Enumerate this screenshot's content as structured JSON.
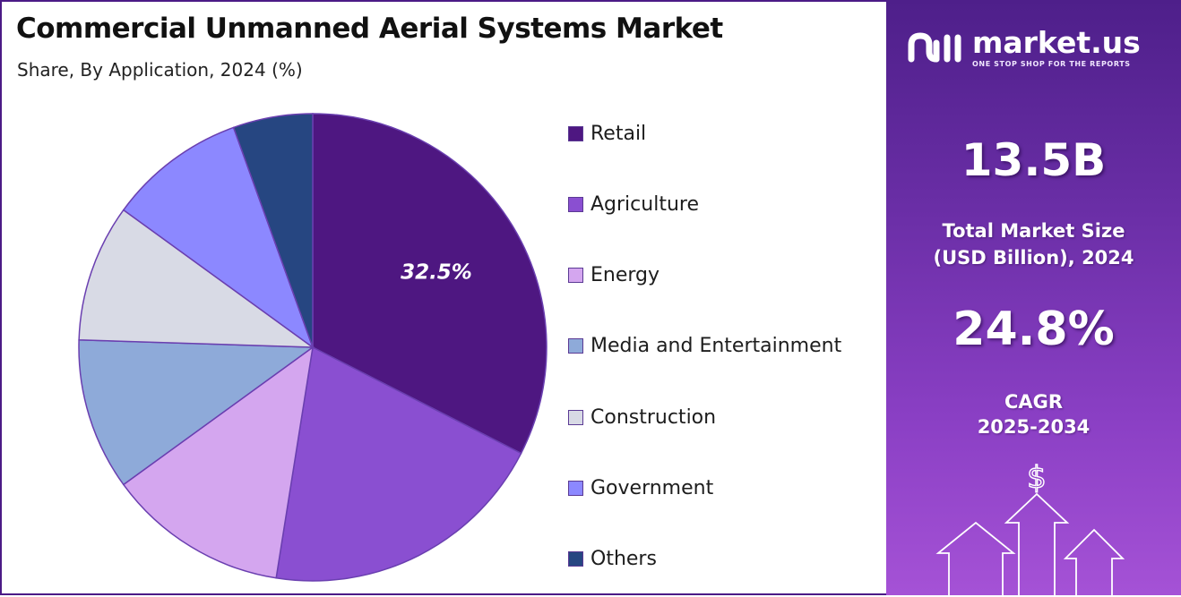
{
  "title": "Commercial Unmanned Aerial Systems Market",
  "subtitle": "Share, By Application, 2024 (%)",
  "chart_data": {
    "type": "pie",
    "title": "Commercial Unmanned Aerial Systems Market",
    "subtitle": "Share, By Application, 2024 (%)",
    "legend_position": "right",
    "slices": [
      {
        "label": "Retail",
        "value": 32.5,
        "color": "#4e1781",
        "data_label": "32.5%"
      },
      {
        "label": "Agriculture",
        "value": 20.0,
        "color": "#8a4fd1",
        "data_label": ""
      },
      {
        "label": "Energy",
        "value": 12.5,
        "color": "#d4a6ef",
        "data_label": ""
      },
      {
        "label": "Media and Entertainment",
        "value": 10.5,
        "color": "#8eaad9",
        "data_label": ""
      },
      {
        "label": "Construction",
        "value": 9.5,
        "color": "#d8dae5",
        "data_label": ""
      },
      {
        "label": "Government",
        "value": 9.5,
        "color": "#8c88ff",
        "data_label": ""
      },
      {
        "label": "Others",
        "value": 5.5,
        "color": "#264681",
        "data_label": ""
      }
    ]
  },
  "sidebar": {
    "brand_name": "market.us",
    "brand_tagline": "ONE STOP SHOP FOR THE REPORTS",
    "market_size_value": "13.5B",
    "market_size_label_line1": "Total Market Size",
    "market_size_label_line2": "(USD Billion), 2024",
    "cagr_value": "24.8%",
    "cagr_label_line1": "CAGR",
    "cagr_label_line2": "2025-2034",
    "currency_symbol": "$",
    "icons": [
      "market-us-logo-icon",
      "dollar-icon",
      "up-arrow-icon"
    ]
  },
  "colors": {
    "border": "#4b1a86",
    "panel_top": "#4e1f8a",
    "panel_bottom": "#a552d6"
  }
}
